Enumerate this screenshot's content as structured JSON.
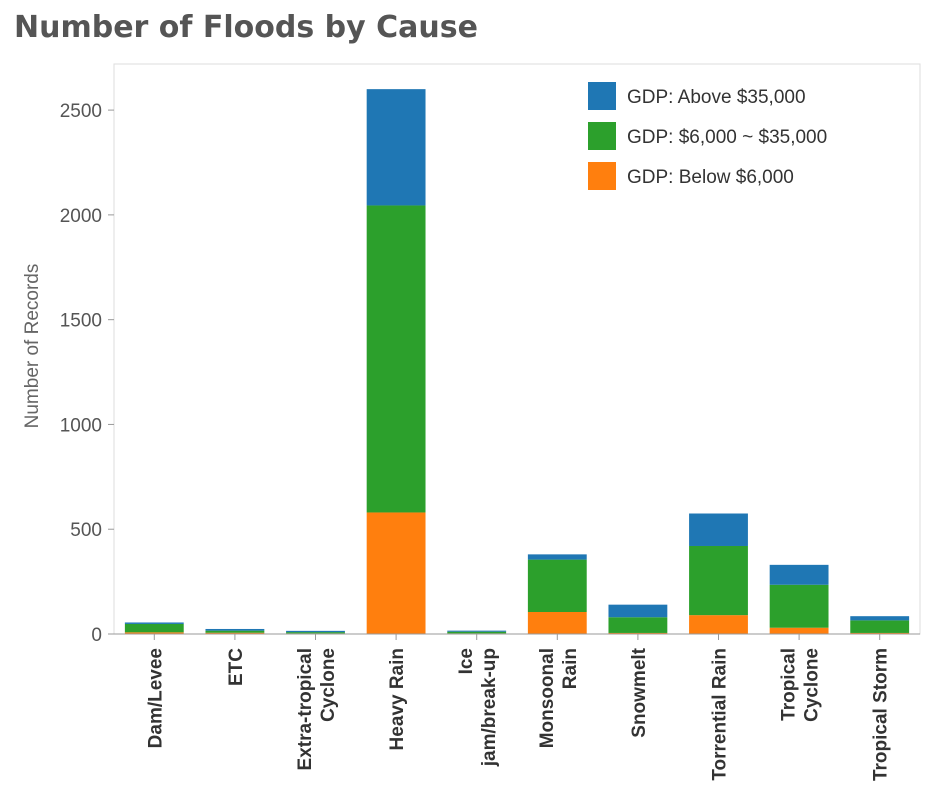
{
  "chart_data": {
    "type": "bar",
    "stacked": true,
    "title": "Number of Floods by Cause",
    "ylabel": "Number of Records",
    "xlabel": "",
    "ylim": [
      0,
      2720
    ],
    "yticks": [
      0,
      500,
      1000,
      1500,
      2000,
      2500
    ],
    "grid": false,
    "legend_position": "top-right",
    "categories": [
      [
        "Dam/Levee"
      ],
      [
        "ETC"
      ],
      [
        "Extra-tropical",
        "Cyclone"
      ],
      [
        "Heavy Rain"
      ],
      [
        "Ice",
        "jam/break-up"
      ],
      [
        "Monsoonal",
        "Rain"
      ],
      [
        "Snowmelt"
      ],
      [
        "Torrential Rain"
      ],
      [
        "Tropical",
        "Cyclone"
      ],
      [
        "Tropical Storm"
      ]
    ],
    "series": [
      {
        "name": "GDP: Below $6,000",
        "color": "#ff7f0e",
        "values": [
          8,
          6,
          3,
          580,
          3,
          105,
          5,
          90,
          30,
          5
        ]
      },
      {
        "name": "GDP: $6,000 ~ $35,000",
        "color": "#2ca02c",
        "values": [
          40,
          10,
          6,
          1465,
          8,
          250,
          75,
          330,
          205,
          60
        ]
      },
      {
        "name": "GDP: Above $35,000",
        "color": "#1f77b4",
        "values": [
          7,
          8,
          6,
          555,
          5,
          25,
          60,
          155,
          95,
          20
        ]
      }
    ],
    "legend_order": [
      2,
      1,
      0
    ]
  }
}
